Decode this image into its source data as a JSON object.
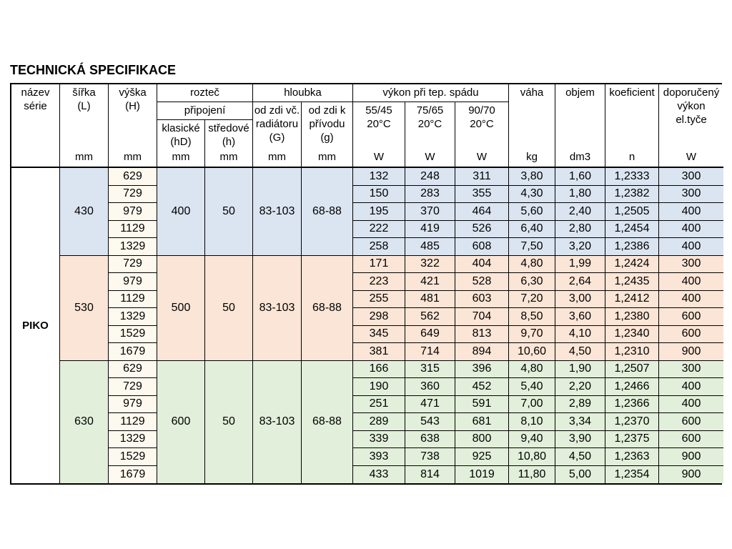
{
  "page": {
    "title": "TECHNICKÁ SPECIFIKACE"
  },
  "table": {
    "series": "PIKO",
    "header": {
      "nazev": "název\nsérie",
      "sirka": "šířka\n(L)",
      "vyska": "výška\n(H)",
      "roztec": "rozteč",
      "pripojeni": "připojení",
      "klasicke": "klasické\n(hD)",
      "stredove": "středové\n(h)",
      "hloubka": "hloubka",
      "od_zdi_radiator": "od zdi vč.\nradiátoru\n(G)",
      "od_zdi_privod": "od zdi k\npřívodu\n(g)",
      "vykon": "výkon při tep. spádu",
      "grad_5545": "55/45\n20°C",
      "grad_7565": "75/65\n20°C",
      "grad_9070": "90/70\n20°C",
      "vaha": "váha",
      "objem": "objem",
      "koeficient": "koeficient",
      "doporuceny": "doporučený\nvýkon\nel.tyče"
    },
    "units": {
      "mm": "mm",
      "w": "W",
      "kg": "kg",
      "dm3": "dm3",
      "n": "n"
    },
    "columns_body": [
      "vyska",
      "vykon-5545",
      "vykon-7565",
      "vykon-9070",
      "vaha",
      "objem",
      "koeficient",
      "doporuceny-vykon"
    ],
    "colors": {
      "border": "#000000",
      "header_bg": "#ffffff",
      "vyska_bg": "#fdf9ee",
      "blue": "#dbe5f1",
      "pink": "#fbe5d6",
      "green": "#e2efda"
    },
    "groups": [
      {
        "sirka": "430",
        "roztec_klasicke": "400",
        "roztec_stredove": "50",
        "hloubka_od_zdi_radiator": "83-103",
        "hloubka_od_zdi_privod": "68-88",
        "color": "#dbe5f1",
        "rows": [
          [
            "629",
            "132",
            "248",
            "311",
            "3,80",
            "1,60",
            "1,2333",
            "300"
          ],
          [
            "729",
            "150",
            "283",
            "355",
            "4,30",
            "1,80",
            "1,2382",
            "300"
          ],
          [
            "979",
            "195",
            "370",
            "464",
            "5,60",
            "2,40",
            "1,2505",
            "400"
          ],
          [
            "1129",
            "222",
            "419",
            "526",
            "6,40",
            "2,80",
            "1,2454",
            "400"
          ],
          [
            "1329",
            "258",
            "485",
            "608",
            "7,50",
            "3,20",
            "1,2386",
            "400"
          ]
        ]
      },
      {
        "sirka": "530",
        "roztec_klasicke": "500",
        "roztec_stredove": "50",
        "hloubka_od_zdi_radiator": "83-103",
        "hloubka_od_zdi_privod": "68-88",
        "color": "#fbe5d6",
        "rows": [
          [
            "729",
            "171",
            "322",
            "404",
            "4,80",
            "1,99",
            "1,2424",
            "300"
          ],
          [
            "979",
            "223",
            "421",
            "528",
            "6,30",
            "2,64",
            "1,2435",
            "400"
          ],
          [
            "1129",
            "255",
            "481",
            "603",
            "7,20",
            "3,00",
            "1,2412",
            "400"
          ],
          [
            "1329",
            "298",
            "562",
            "704",
            "8,50",
            "3,60",
            "1,2380",
            "600"
          ],
          [
            "1529",
            "345",
            "649",
            "813",
            "9,70",
            "4,10",
            "1,2340",
            "600"
          ],
          [
            "1679",
            "381",
            "714",
            "894",
            "10,60",
            "4,50",
            "1,2310",
            "900"
          ]
        ]
      },
      {
        "sirka": "630",
        "roztec_klasicke": "600",
        "roztec_stredove": "50",
        "hloubka_od_zdi_radiator": "83-103",
        "hloubka_od_zdi_privod": "68-88",
        "color": "#e2efda",
        "rows": [
          [
            "629",
            "166",
            "315",
            "396",
            "4,80",
            "1,90",
            "1,2507",
            "300"
          ],
          [
            "729",
            "190",
            "360",
            "452",
            "5,40",
            "2,20",
            "1,2466",
            "400"
          ],
          [
            "979",
            "251",
            "471",
            "591",
            "7,00",
            "2,89",
            "1,2366",
            "400"
          ],
          [
            "1129",
            "289",
            "543",
            "681",
            "8,10",
            "3,34",
            "1,2370",
            "600"
          ],
          [
            "1329",
            "339",
            "638",
            "800",
            "9,40",
            "3,90",
            "1,2375",
            "600"
          ],
          [
            "1529",
            "393",
            "738",
            "925",
            "10,80",
            "4,50",
            "1,2363",
            "900"
          ],
          [
            "1679",
            "433",
            "814",
            "1019",
            "11,80",
            "5,00",
            "1,2354",
            "900"
          ]
        ]
      }
    ]
  }
}
